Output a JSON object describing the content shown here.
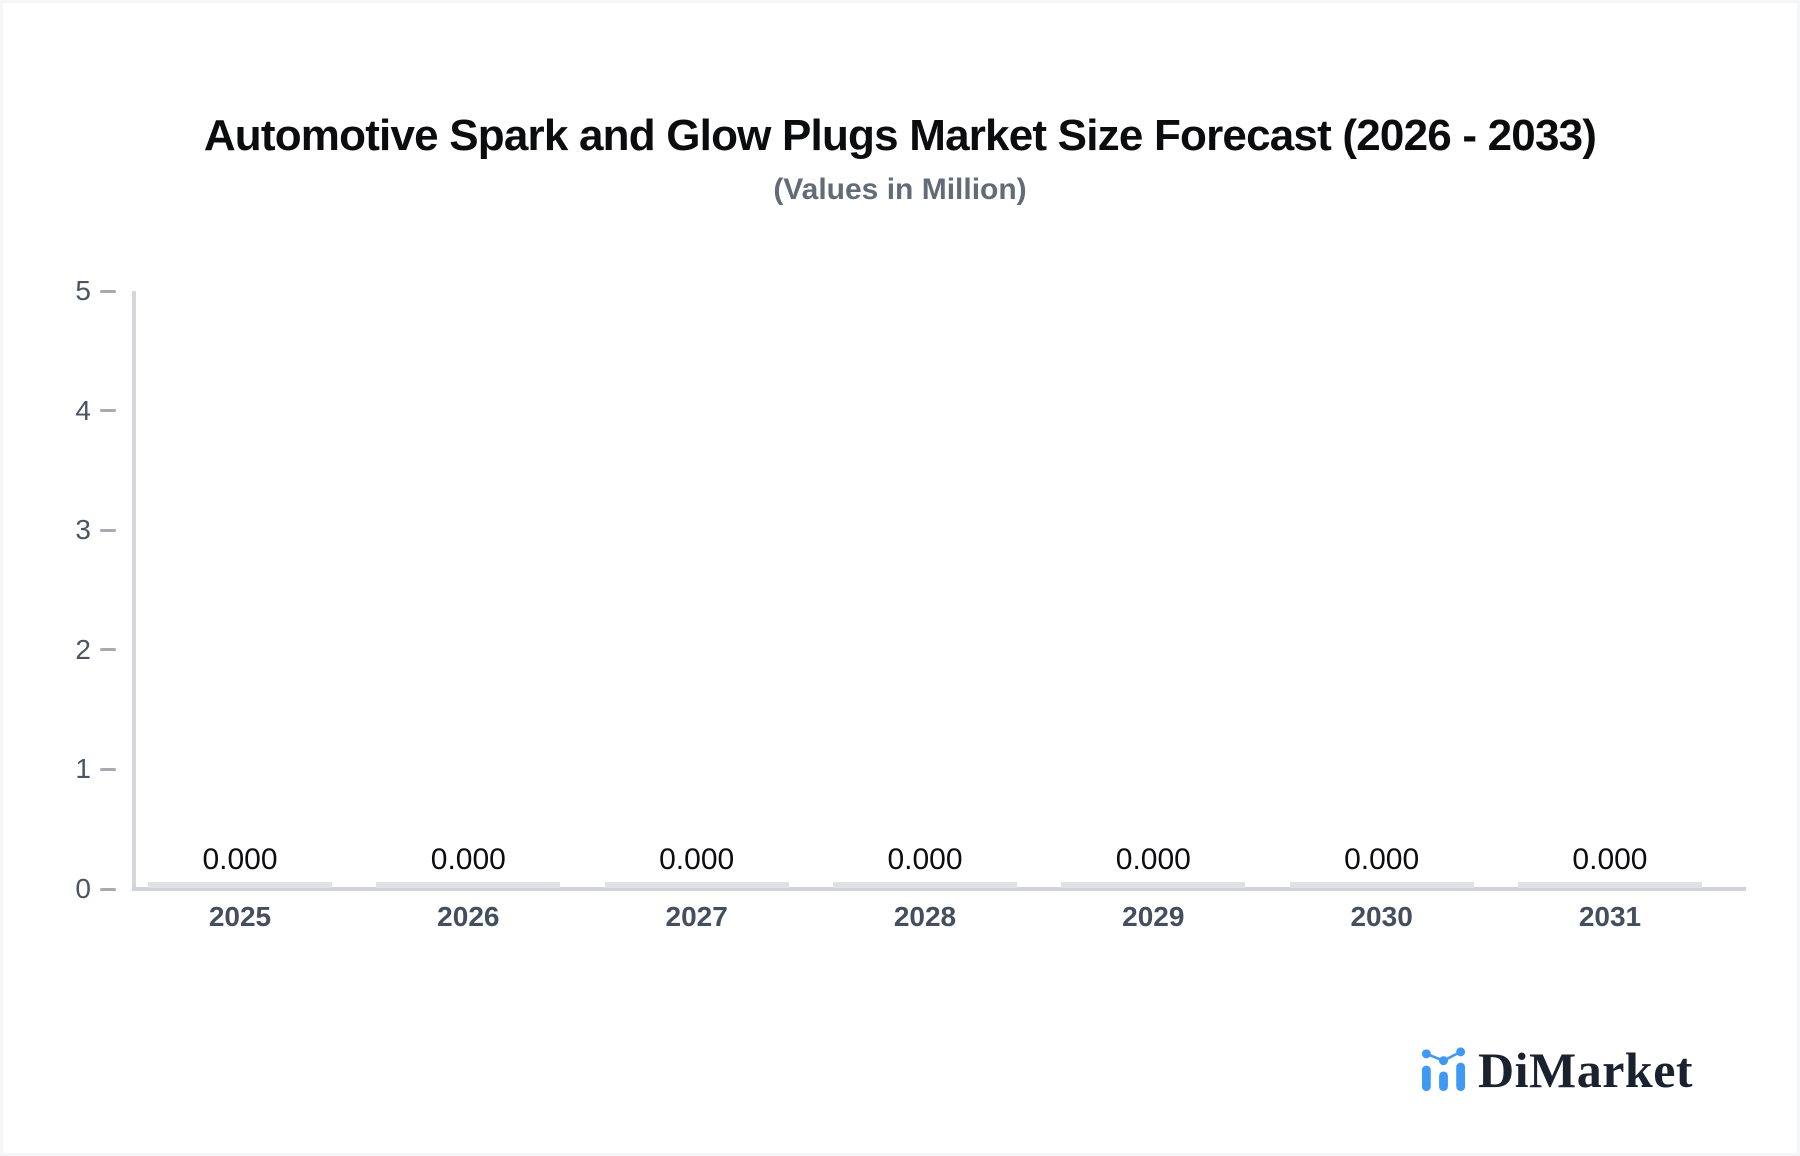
{
  "page": {
    "background": "#ffffff",
    "border_color": "#f4f6f8"
  },
  "chart_data": {
    "type": "bar",
    "title": "Automotive Spark and Glow Plugs Market Size Forecast (2026 - 2033)",
    "subtitle": "(Values in Million)",
    "categories": [
      "2025",
      "2026",
      "2027",
      "2028",
      "2029",
      "2030",
      "2031"
    ],
    "values": [
      0,
      0,
      0,
      0,
      0,
      0,
      0
    ],
    "value_labels": [
      "0.000",
      "0.000",
      "0.000",
      "0.000",
      "0.000",
      "0.000",
      "0.000"
    ],
    "xlabel": "",
    "ylabel": "",
    "ylim": [
      0,
      5
    ],
    "yticks": [
      "0",
      "1",
      "2",
      "3",
      "4",
      "5"
    ],
    "grid": false,
    "legend": null,
    "bar_color": "#dfe1e6",
    "axis_line_color": "#d5d7dc",
    "baseline_color": "#d0d3d9",
    "tick_mark_color": "#a6aab3",
    "tick_label_color": "#4a5462",
    "category_label_color": "#434e5f",
    "value_label_color": "#0c0d10",
    "title_color": "#0b0c0e",
    "subtitle_color": "#626c78"
  },
  "branding": {
    "logo_text": "DiMarket",
    "logo_icon": "bar-line-chart-icon",
    "logo_icon_color": "#3f98f3",
    "logo_text_color": "#1a2230"
  }
}
